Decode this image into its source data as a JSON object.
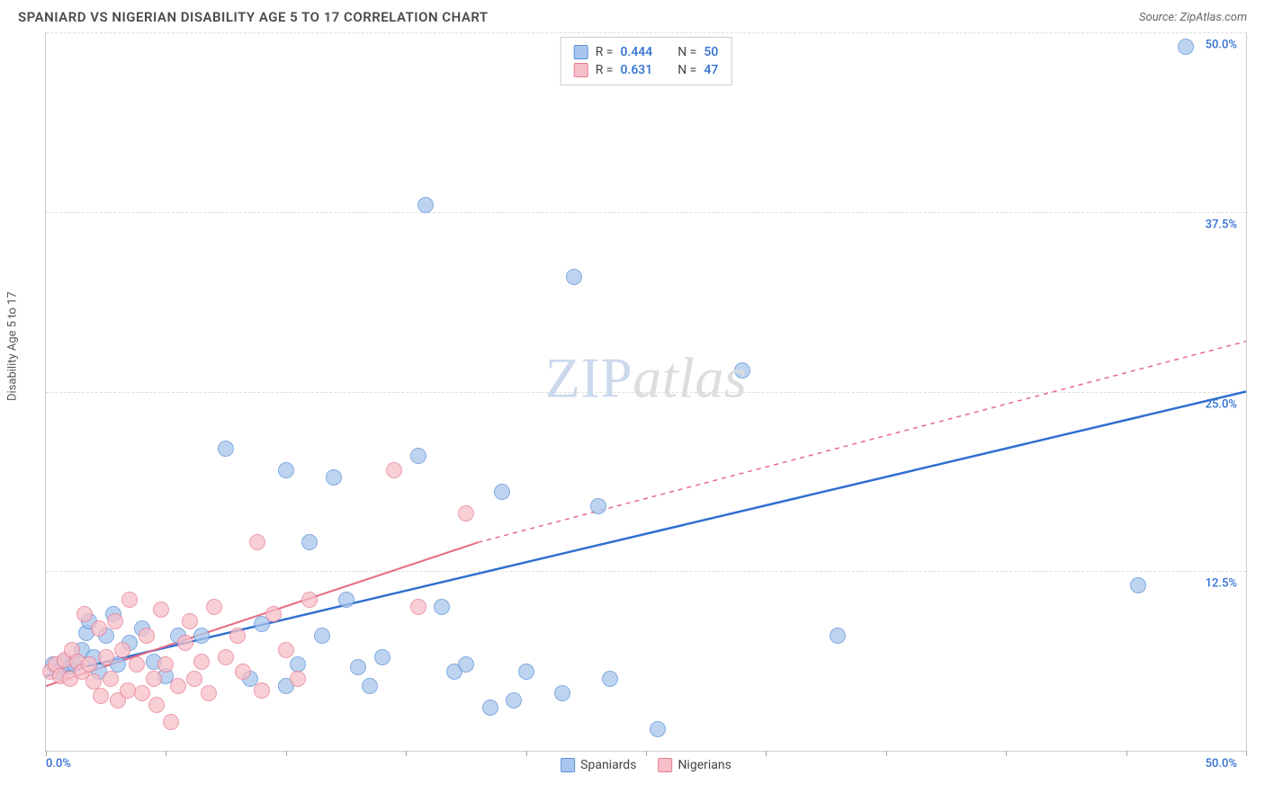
{
  "header": {
    "title": "SPANIARD VS NIGERIAN DISABILITY AGE 5 TO 17 CORRELATION CHART",
    "source_prefix": "Source: ",
    "source_name": "ZipAtlas.com"
  },
  "chart": {
    "type": "scatter",
    "ylabel": "Disability Age 5 to 17",
    "background_color": "#ffffff",
    "grid_color": "#dddddd",
    "axis_color": "#cccccc",
    "xlim": [
      0,
      50
    ],
    "ylim": [
      0,
      50
    ],
    "x_tick_positions": [
      0,
      5,
      10,
      15,
      20,
      25,
      30,
      35,
      40,
      45,
      50
    ],
    "x_axis_min_label": "0.0%",
    "x_axis_max_label": "50.0%",
    "x_axis_label_color": "#2f6fd0",
    "y_ticks": [
      {
        "v": 12.5,
        "label": "12.5%"
      },
      {
        "v": 25.0,
        "label": "25.0%"
      },
      {
        "v": 37.5,
        "label": "37.5%"
      },
      {
        "v": 50.0,
        "label": "50.0%"
      }
    ],
    "y_tick_label_color": "#2f6fd0",
    "watermark": {
      "zip": "ZIP",
      "atlas": "atlas"
    },
    "series": [
      {
        "name": "Spaniards",
        "fill_color": "#a7c6ed",
        "stroke_color": "#5b8fd6",
        "marker_radius": 9,
        "marker_opacity": 0.75,
        "trend": {
          "x1": 0,
          "y1": 5.2,
          "x2": 50,
          "y2": 25.0,
          "color": "#2f6fd0",
          "width": 2.5,
          "dash": "none",
          "dashed_extension": null
        },
        "points": [
          {
            "x": 0.3,
            "y": 6.0
          },
          {
            "x": 0.5,
            "y": 5.5
          },
          {
            "x": 0.8,
            "y": 6.2
          },
          {
            "x": 1.0,
            "y": 5.8
          },
          {
            "x": 1.2,
            "y": 6.0
          },
          {
            "x": 1.5,
            "y": 7.0
          },
          {
            "x": 1.7,
            "y": 8.2
          },
          {
            "x": 1.8,
            "y": 9.0
          },
          {
            "x": 2.0,
            "y": 6.5
          },
          {
            "x": 2.2,
            "y": 5.5
          },
          {
            "x": 2.5,
            "y": 8.0
          },
          {
            "x": 2.8,
            "y": 9.5
          },
          {
            "x": 3.0,
            "y": 6.0
          },
          {
            "x": 3.5,
            "y": 7.5
          },
          {
            "x": 4.0,
            "y": 8.5
          },
          {
            "x": 4.5,
            "y": 6.2
          },
          {
            "x": 5.0,
            "y": 5.2
          },
          {
            "x": 5.5,
            "y": 8.0
          },
          {
            "x": 6.5,
            "y": 8.0
          },
          {
            "x": 7.5,
            "y": 21.0
          },
          {
            "x": 8.5,
            "y": 5.0
          },
          {
            "x": 9.0,
            "y": 8.8
          },
          {
            "x": 10.0,
            "y": 19.5
          },
          {
            "x": 10.0,
            "y": 4.5
          },
          {
            "x": 10.5,
            "y": 6.0
          },
          {
            "x": 11.0,
            "y": 14.5
          },
          {
            "x": 11.5,
            "y": 8.0
          },
          {
            "x": 12.0,
            "y": 19.0
          },
          {
            "x": 12.5,
            "y": 10.5
          },
          {
            "x": 13.0,
            "y": 5.8
          },
          {
            "x": 13.5,
            "y": 4.5
          },
          {
            "x": 15.5,
            "y": 20.5
          },
          {
            "x": 15.8,
            "y": 38.0
          },
          {
            "x": 16.5,
            "y": 10.0
          },
          {
            "x": 17.0,
            "y": 5.5
          },
          {
            "x": 17.5,
            "y": 6.0
          },
          {
            "x": 18.5,
            "y": 3.0
          },
          {
            "x": 19.0,
            "y": 18.0
          },
          {
            "x": 19.5,
            "y": 3.5
          },
          {
            "x": 20.0,
            "y": 5.5
          },
          {
            "x": 21.5,
            "y": 4.0
          },
          {
            "x": 22.0,
            "y": 33.0
          },
          {
            "x": 23.0,
            "y": 17.0
          },
          {
            "x": 23.5,
            "y": 5.0
          },
          {
            "x": 25.5,
            "y": 1.5
          },
          {
            "x": 29.0,
            "y": 26.5
          },
          {
            "x": 33.0,
            "y": 8.0
          },
          {
            "x": 45.5,
            "y": 11.5
          },
          {
            "x": 47.5,
            "y": 49.0
          },
          {
            "x": 14.0,
            "y": 6.5
          }
        ]
      },
      {
        "name": "Nigerians",
        "fill_color": "#f7bfc9",
        "stroke_color": "#e77b90",
        "marker_radius": 9,
        "marker_opacity": 0.75,
        "trend": {
          "x1": 0,
          "y1": 4.5,
          "x2": 18,
          "y2": 14.5,
          "color": "#e86a82",
          "width": 2,
          "dash": "none",
          "dashed_extension": {
            "x1": 18,
            "y1": 14.5,
            "x2": 50,
            "y2": 28.5,
            "dash": "5,5"
          }
        },
        "points": [
          {
            "x": 0.2,
            "y": 5.5
          },
          {
            "x": 0.4,
            "y": 6.0
          },
          {
            "x": 0.6,
            "y": 5.2
          },
          {
            "x": 0.8,
            "y": 6.3
          },
          {
            "x": 1.0,
            "y": 5.0
          },
          {
            "x": 1.1,
            "y": 7.0
          },
          {
            "x": 1.3,
            "y": 6.2
          },
          {
            "x": 1.5,
            "y": 5.5
          },
          {
            "x": 1.6,
            "y": 9.5
          },
          {
            "x": 1.8,
            "y": 6.0
          },
          {
            "x": 2.0,
            "y": 4.8
          },
          {
            "x": 2.2,
            "y": 8.5
          },
          {
            "x": 2.3,
            "y": 3.8
          },
          {
            "x": 2.5,
            "y": 6.5
          },
          {
            "x": 2.7,
            "y": 5.0
          },
          {
            "x": 2.9,
            "y": 9.0
          },
          {
            "x": 3.0,
            "y": 3.5
          },
          {
            "x": 3.2,
            "y": 7.0
          },
          {
            "x": 3.4,
            "y": 4.2
          },
          {
            "x": 3.5,
            "y": 10.5
          },
          {
            "x": 3.8,
            "y": 6.0
          },
          {
            "x": 4.0,
            "y": 4.0
          },
          {
            "x": 4.2,
            "y": 8.0
          },
          {
            "x": 4.5,
            "y": 5.0
          },
          {
            "x": 4.6,
            "y": 3.2
          },
          {
            "x": 4.8,
            "y": 9.8
          },
          {
            "x": 5.0,
            "y": 6.0
          },
          {
            "x": 5.2,
            "y": 2.0
          },
          {
            "x": 5.5,
            "y": 4.5
          },
          {
            "x": 5.8,
            "y": 7.5
          },
          {
            "x": 6.0,
            "y": 9.0
          },
          {
            "x": 6.2,
            "y": 5.0
          },
          {
            "x": 6.5,
            "y": 6.2
          },
          {
            "x": 6.8,
            "y": 4.0
          },
          {
            "x": 7.0,
            "y": 10.0
          },
          {
            "x": 7.5,
            "y": 6.5
          },
          {
            "x": 8.0,
            "y": 8.0
          },
          {
            "x": 8.2,
            "y": 5.5
          },
          {
            "x": 8.8,
            "y": 14.5
          },
          {
            "x": 9.0,
            "y": 4.2
          },
          {
            "x": 9.5,
            "y": 9.5
          },
          {
            "x": 10.0,
            "y": 7.0
          },
          {
            "x": 10.5,
            "y": 5.0
          },
          {
            "x": 11.0,
            "y": 10.5
          },
          {
            "x": 14.5,
            "y": 19.5
          },
          {
            "x": 15.5,
            "y": 10.0
          },
          {
            "x": 17.5,
            "y": 16.5
          }
        ]
      }
    ],
    "legend_top": [
      {
        "swatch_fill": "#a7c6ed",
        "swatch_stroke": "#5b8fd6",
        "r_label": "R =",
        "r_val": "0.444",
        "n_label": "N =",
        "n_val": "50",
        "val_color": "#2f6fd0"
      },
      {
        "swatch_fill": "#f7bfc9",
        "swatch_stroke": "#e77b90",
        "r_label": "R =",
        "r_val": "0.631",
        "n_label": "N =",
        "n_val": "47",
        "val_color": "#2f6fd0"
      }
    ],
    "legend_bottom": [
      {
        "swatch_fill": "#a7c6ed",
        "swatch_stroke": "#5b8fd6",
        "label": "Spaniards"
      },
      {
        "swatch_fill": "#f7bfc9",
        "swatch_stroke": "#e77b90",
        "label": "Nigerians"
      }
    ]
  }
}
